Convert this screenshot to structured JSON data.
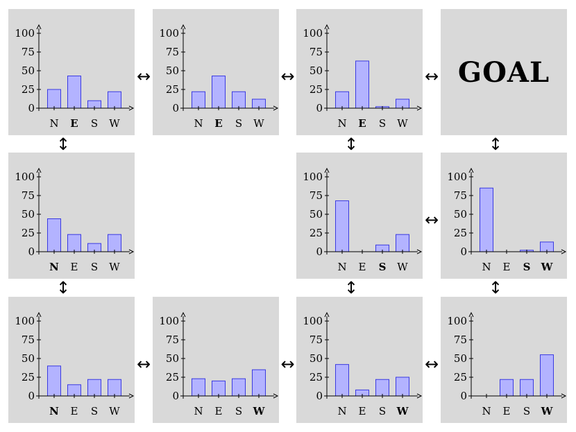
{
  "goal_label": "GOAL",
  "bar_fill": "#b3b3ff",
  "bar_stroke": "#3a3ae0",
  "panel_color": "#d9d9d9",
  "arrow_h_icon": "↔",
  "arrow_v_icon": "↕",
  "chart_data": [
    {
      "type": "bar",
      "grid": [
        0,
        0
      ],
      "categories": [
        "N",
        "E",
        "S",
        "W"
      ],
      "values": [
        25,
        43,
        10,
        22
      ],
      "bold": [
        "E"
      ],
      "yticks": [
        0,
        25,
        50,
        75,
        100
      ],
      "ylim": [
        0,
        110
      ]
    },
    {
      "type": "bar",
      "grid": [
        0,
        1
      ],
      "categories": [
        "N",
        "E",
        "S",
        "W"
      ],
      "values": [
        22,
        43,
        22,
        12
      ],
      "bold": [
        "E"
      ],
      "yticks": [
        0,
        25,
        50,
        75,
        100
      ],
      "ylim": [
        0,
        110
      ]
    },
    {
      "type": "bar",
      "grid": [
        0,
        2
      ],
      "categories": [
        "N",
        "E",
        "S",
        "W"
      ],
      "values": [
        22,
        63,
        2,
        12
      ],
      "bold": [
        "E"
      ],
      "yticks": [
        0,
        25,
        50,
        75,
        100
      ],
      "ylim": [
        0,
        110
      ]
    },
    {
      "type": "bar",
      "grid": [
        1,
        0
      ],
      "categories": [
        "N",
        "E",
        "S",
        "W"
      ],
      "values": [
        44,
        23,
        11,
        23
      ],
      "bold": [
        "N"
      ],
      "yticks": [
        0,
        25,
        50,
        75,
        100
      ],
      "ylim": [
        0,
        110
      ]
    },
    {
      "type": "bar",
      "grid": [
        1,
        2
      ],
      "categories": [
        "N",
        "E",
        "S",
        "W"
      ],
      "values": [
        68,
        0,
        9,
        23
      ],
      "bold": [
        "S"
      ],
      "yticks": [
        0,
        25,
        50,
        75,
        100
      ],
      "ylim": [
        0,
        110
      ]
    },
    {
      "type": "bar",
      "grid": [
        1,
        3
      ],
      "categories": [
        "N",
        "E",
        "S",
        "W"
      ],
      "values": [
        85,
        0,
        2,
        13
      ],
      "bold": [
        "S",
        "W"
      ],
      "yticks": [
        0,
        25,
        50,
        75,
        100
      ],
      "ylim": [
        0,
        110
      ]
    },
    {
      "type": "bar",
      "grid": [
        2,
        0
      ],
      "categories": [
        "N",
        "E",
        "S",
        "W"
      ],
      "values": [
        40,
        15,
        22,
        22
      ],
      "bold": [
        "N"
      ],
      "yticks": [
        0,
        25,
        50,
        75,
        100
      ],
      "ylim": [
        0,
        110
      ]
    },
    {
      "type": "bar",
      "grid": [
        2,
        1
      ],
      "categories": [
        "N",
        "E",
        "S",
        "W"
      ],
      "values": [
        23,
        20,
        23,
        35
      ],
      "bold": [
        "W"
      ],
      "yticks": [
        0,
        25,
        50,
        75,
        100
      ],
      "ylim": [
        0,
        110
      ]
    },
    {
      "type": "bar",
      "grid": [
        2,
        2
      ],
      "categories": [
        "N",
        "E",
        "S",
        "W"
      ],
      "values": [
        42,
        8,
        22,
        25
      ],
      "bold": [
        "W"
      ],
      "yticks": [
        0,
        25,
        50,
        75,
        100
      ],
      "ylim": [
        0,
        110
      ]
    },
    {
      "type": "bar",
      "grid": [
        2,
        3
      ],
      "categories": [
        "N",
        "E",
        "S",
        "W"
      ],
      "values": [
        0,
        22,
        22,
        55
      ],
      "bold": [
        "W"
      ],
      "yticks": [
        0,
        25,
        50,
        75,
        100
      ],
      "ylim": [
        0,
        110
      ]
    }
  ],
  "goal_cell": [
    0,
    3
  ],
  "connections": [
    {
      "from": [
        0,
        0
      ],
      "to": [
        0,
        1
      ]
    },
    {
      "from": [
        0,
        1
      ],
      "to": [
        0,
        2
      ]
    },
    {
      "from": [
        0,
        2
      ],
      "to": [
        0,
        3
      ]
    },
    {
      "from": [
        0,
        0
      ],
      "to": [
        1,
        0
      ]
    },
    {
      "from": [
        0,
        2
      ],
      "to": [
        1,
        2
      ]
    },
    {
      "from": [
        0,
        3
      ],
      "to": [
        1,
        3
      ]
    },
    {
      "from": [
        1,
        2
      ],
      "to": [
        1,
        3
      ]
    },
    {
      "from": [
        1,
        0
      ],
      "to": [
        2,
        0
      ]
    },
    {
      "from": [
        1,
        2
      ],
      "to": [
        2,
        2
      ]
    },
    {
      "from": [
        1,
        3
      ],
      "to": [
        2,
        3
      ]
    },
    {
      "from": [
        2,
        0
      ],
      "to": [
        2,
        1
      ]
    },
    {
      "from": [
        2,
        1
      ],
      "to": [
        2,
        2
      ]
    },
    {
      "from": [
        2,
        2
      ],
      "to": [
        2,
        3
      ]
    }
  ]
}
